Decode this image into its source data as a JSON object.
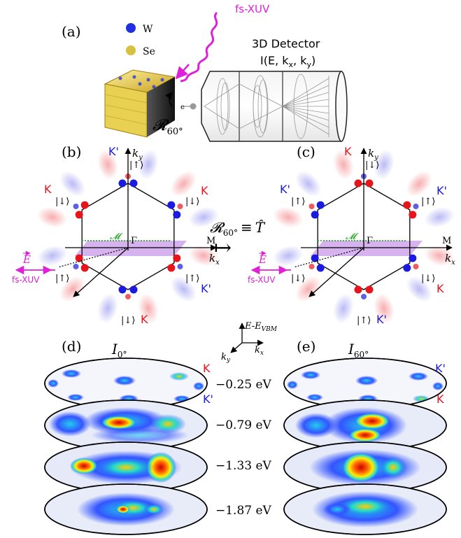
{
  "panel_a": {
    "label": "(a)",
    "atom_w": "W",
    "atom_se": "Se",
    "source": "fs-XUV",
    "detector_title": "3D Detector",
    "detector_signal": "I(E, k",
    "detector_signal_x": "x",
    "detector_signal_mid": ", k",
    "detector_signal_y": "y",
    "detector_signal_end": ")",
    "electron": "e",
    "rotation_sym": "𝓡",
    "rotation_sub": "60°"
  },
  "panel_b": {
    "label": "(b)",
    "ky": "k",
    "ky_sub": "y",
    "kx": "k",
    "kx_sub": "x",
    "gamma": "Γ",
    "m_point": "M",
    "mirror": "𝓜",
    "efield": "E",
    "source": "fs-XUV",
    "valleys": [
      {
        "name": "K'",
        "spin": "|↑⟩",
        "color": "#1a1ae0"
      },
      {
        "name": "K",
        "spin": "|↓⟩",
        "color": "#e8141c"
      },
      {
        "name": "K",
        "spin": "|↓⟩",
        "color": "#e8141c"
      },
      {
        "name": "K'",
        "spin": "|↑⟩",
        "color": "#1a1ae0"
      },
      {
        "name": "K",
        "spin": "|↓⟩",
        "color": "#e8141c"
      },
      {
        "name": "",
        "spin": "|↑⟩",
        "color": "#1a1ae0"
      }
    ]
  },
  "panel_c": {
    "label": "(c)",
    "ky": "k",
    "ky_sub": "y",
    "kx": "k",
    "kx_sub": "x",
    "gamma": "Γ",
    "m_point": "M",
    "mirror": "𝓜",
    "efield": "E",
    "source": "fs-XUV",
    "valleys": [
      {
        "name": "K",
        "spin": "|↓⟩",
        "color": "#e8141c"
      },
      {
        "name": "K'",
        "spin": "|↑⟩",
        "color": "#1a1ae0"
      },
      {
        "name": "K'",
        "spin": "|↑⟩",
        "color": "#1a1ae0"
      },
      {
        "name": "K",
        "spin": "|↓⟩",
        "color": "#e8141c"
      },
      {
        "name": "K'",
        "spin": "|↑⟩",
        "color": "#1a1ae0"
      },
      {
        "name": "",
        "spin": "|↓⟩",
        "color": "#e8141c"
      }
    ]
  },
  "operator": {
    "lhs": "𝓡",
    "lhs_sub": "60°",
    "equiv": "≡",
    "rhs": "T̂",
    "arrow": "↦"
  },
  "axes3d": {
    "z": "E-E",
    "z_sub": "VBM",
    "x": "k",
    "x_sub": "x",
    "y": "k",
    "y_sub": "y"
  },
  "panel_d": {
    "label": "(d)",
    "title": "I",
    "title_sub": "0°",
    "corner_top": "K",
    "corner_bottom": "K'"
  },
  "panel_e": {
    "label": "(e)",
    "title": "I",
    "title_sub": "60°",
    "corner_top": "K'",
    "corner_bottom": "K"
  },
  "energies": [
    "−0.25 eV",
    "−0.79 eV",
    "−1.33 eV",
    "−1.87 eV"
  ],
  "colors": {
    "red": "#e8141c",
    "blue": "#1a1ae0",
    "magenta": "#e020d8",
    "green": "#1aa01a",
    "plane": "#c89ae8"
  }
}
